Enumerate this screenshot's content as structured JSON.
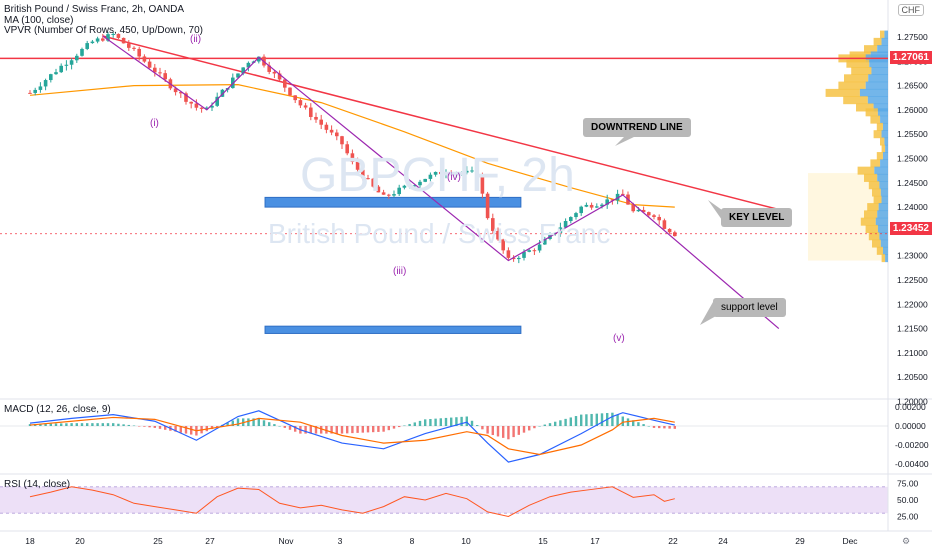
{
  "header": {
    "title": "British Pound / Swiss Franc, 2h, OANDA",
    "ma_label": "MA (100, close)",
    "vpvr_label": "VPVR (Number Of Rows, 450, Up/Down, 70)",
    "currency": "CHF"
  },
  "watermark": {
    "symbol": "GBPCHF, 2h",
    "name": "British Pound / Swiss Franc"
  },
  "annotations": {
    "downtrend": "DOWNTREND LINE",
    "key_level": "KEY LEVEL",
    "support": "support level",
    "waves": [
      "(i)",
      "(ii)",
      "(iii)",
      "(iv)",
      "(v)"
    ]
  },
  "price_tags": {
    "resistance": "1.27061",
    "current": "1.23452"
  },
  "macd": {
    "title": "MACD (12, 26, close, 9)"
  },
  "rsi": {
    "title": "RSI (14, close)"
  },
  "colors": {
    "up_candle": "#26a69a",
    "down_candle": "#ef5350",
    "ma": "#ff9800",
    "trend_line": "#f23645",
    "wave_line": "#9c27b0",
    "zone": "#4a90e2",
    "macd_line": "#2962ff",
    "signal_line": "#ff6d00",
    "rsi_line": "#ff5722",
    "rsi_band": "#ede0f7"
  },
  "chart_data": [
    {
      "type": "candlestick",
      "title": "British Pound / Swiss Franc, 2h, OANDA",
      "y_axis": {
        "ticks": [
          "1.27500",
          "1.27000",
          "1.26500",
          "1.26000",
          "1.25500",
          "1.25000",
          "1.24500",
          "1.24000",
          "1.23500",
          "1.23000",
          "1.22500",
          "1.22000",
          "1.21500",
          "1.21000",
          "1.20500",
          "1.20000"
        ],
        "ylim": [
          1.1975,
          1.2765
        ]
      },
      "x_axis": {
        "ticks": [
          "18",
          "20",
          "25",
          "27",
          "Nov",
          "3",
          "8",
          "10",
          "15",
          "17",
          "22",
          "24",
          "29",
          "Dec"
        ]
      },
      "price_path": [
        [
          0,
          1.2635
        ],
        [
          3,
          1.269
        ],
        [
          6,
          1.274
        ],
        [
          8,
          1.2755
        ],
        [
          10,
          1.272
        ],
        [
          12,
          1.268
        ],
        [
          14,
          1.264
        ],
        [
          16,
          1.2605
        ],
        [
          17,
          1.26
        ],
        [
          19,
          1.265
        ],
        [
          21,
          1.27
        ],
        [
          22,
          1.2708
        ],
        [
          24,
          1.266
        ],
        [
          26,
          1.261
        ],
        [
          28,
          1.257
        ],
        [
          30,
          1.253
        ],
        [
          31,
          1.249
        ],
        [
          33,
          1.244
        ],
        [
          34,
          1.242
        ],
        [
          36,
          1.244
        ],
        [
          38,
          1.246
        ],
        [
          40,
          1.2475
        ],
        [
          42,
          1.247
        ],
        [
          43,
          1.247
        ],
        [
          44,
          1.238
        ],
        [
          45,
          1.233
        ],
        [
          46,
          1.229
        ],
        [
          47,
          1.23
        ],
        [
          49,
          1.232
        ],
        [
          51,
          1.236
        ],
        [
          53,
          1.24
        ],
        [
          55,
          1.241
        ],
        [
          57,
          1.2425
        ],
        [
          58,
          1.239
        ],
        [
          60,
          1.2385
        ],
        [
          61,
          1.236
        ],
        [
          62,
          1.2345
        ]
      ],
      "last_price": 1.23452,
      "moving_average": {
        "name": "MA (100, close)",
        "path": [
          [
            0,
            1.263
          ],
          [
            10,
            1.265
          ],
          [
            20,
            1.2652
          ],
          [
            28,
            1.2615
          ],
          [
            36,
            1.2555
          ],
          [
            44,
            1.249
          ],
          [
            52,
            1.244
          ],
          [
            58,
            1.2405
          ],
          [
            62,
            1.24
          ]
        ]
      },
      "horizontal_lines": [
        {
          "label": "1.27061",
          "y": 1.27061
        }
      ],
      "zones": [
        {
          "label": "KEY LEVEL",
          "y_from": 1.24,
          "y_to": 1.242,
          "x_from_day": 22.6,
          "x_to_day": 47.2
        },
        {
          "label": "support level",
          "y_from": 1.214,
          "y_to": 1.2155,
          "x_from_day": 22.6,
          "x_to_day": 47.2
        }
      ],
      "trend_lines": [
        {
          "label": "DOWNTREND LINE",
          "from": [
            7,
            1.2752
          ],
          "to": [
            72,
            1.2395
          ]
        }
      ],
      "wave_points": [
        {
          "label": "(i)",
          "day": 17,
          "price": 1.26
        },
        {
          "label": "(ii)",
          "day": 22,
          "price": 1.2708
        },
        {
          "label": "(iii)",
          "day": 46,
          "price": 1.229
        },
        {
          "label": "(iv)",
          "day": 57,
          "price": 1.2425
        },
        {
          "label": "(v)",
          "day": 72,
          "price": 1.215
        }
      ],
      "volume_profile": {
        "label": "VPVR (Number Of Rows, 450, Up/Down, 70)",
        "value_area": [
          1.229,
          1.247
        ],
        "nodes": [
          [
            1.2755,
            0.1
          ],
          [
            1.274,
            0.18
          ],
          [
            1.2725,
            0.3
          ],
          [
            1.2712,
            0.48
          ],
          [
            1.2706,
            0.62
          ],
          [
            1.2695,
            0.52
          ],
          [
            1.268,
            0.46
          ],
          [
            1.2665,
            0.55
          ],
          [
            1.265,
            0.62
          ],
          [
            1.2635,
            0.78
          ],
          [
            1.262,
            0.56
          ],
          [
            1.2605,
            0.4
          ],
          [
            1.2595,
            0.28
          ],
          [
            1.258,
            0.22
          ],
          [
            1.2565,
            0.14
          ],
          [
            1.255,
            0.18
          ],
          [
            1.2535,
            0.1
          ],
          [
            1.252,
            0.08
          ],
          [
            1.2505,
            0.14
          ],
          [
            1.249,
            0.22
          ],
          [
            1.2475,
            0.38
          ],
          [
            1.246,
            0.3
          ],
          [
            1.2445,
            0.24
          ],
          [
            1.243,
            0.2
          ],
          [
            1.2415,
            0.18
          ],
          [
            1.24,
            0.26
          ],
          [
            1.2385,
            0.3
          ],
          [
            1.237,
            0.34
          ],
          [
            1.2355,
            0.28
          ],
          [
            1.234,
            0.24
          ],
          [
            1.2325,
            0.2
          ],
          [
            1.231,
            0.14
          ],
          [
            1.2295,
            0.08
          ]
        ]
      }
    },
    {
      "type": "macd",
      "title": "MACD (12, 26, close, 9)",
      "y_axis": {
        "ticks": [
          "0.00200",
          "0.00000",
          "-0.00200",
          "-0.00400"
        ],
        "ylim": [
          -0.0048,
          0.0028
        ]
      },
      "macd": [
        [
          0,
          0.0003
        ],
        [
          4,
          0.0008
        ],
        [
          8,
          0.0012
        ],
        [
          12,
          0.0005
        ],
        [
          16,
          -0.0015
        ],
        [
          20,
          0.001
        ],
        [
          22,
          0.0016
        ],
        [
          26,
          -0.0004
        ],
        [
          30,
          -0.0018
        ],
        [
          34,
          -0.0024
        ],
        [
          38,
          -0.0008
        ],
        [
          42,
          0.0004
        ],
        [
          44,
          -0.0018
        ],
        [
          46,
          -0.0038
        ],
        [
          49,
          -0.003
        ],
        [
          53,
          -0.0008
        ],
        [
          56,
          0.001
        ],
        [
          57,
          0.0014
        ],
        [
          60,
          0.0006
        ],
        [
          62,
          0.0001
        ]
      ],
      "signal": [
        [
          0,
          0.0001
        ],
        [
          4,
          0.0005
        ],
        [
          8,
          0.0009
        ],
        [
          12,
          0.0007
        ],
        [
          16,
          -0.0005
        ],
        [
          20,
          0.0002
        ],
        [
          22,
          0.0008
        ],
        [
          26,
          0.0004
        ],
        [
          30,
          -0.001
        ],
        [
          34,
          -0.0018
        ],
        [
          38,
          -0.0015
        ],
        [
          42,
          -0.0006
        ],
        [
          44,
          -0.001
        ],
        [
          46,
          -0.0024
        ],
        [
          49,
          -0.003
        ],
        [
          53,
          -0.002
        ],
        [
          56,
          -0.0004
        ],
        [
          57,
          0.0004
        ],
        [
          60,
          0.0008
        ],
        [
          62,
          0.0004
        ]
      ]
    },
    {
      "type": "rsi",
      "title": "RSI (14, close)",
      "y_axis": {
        "ticks": [
          "75.00",
          "50.00",
          "25.00"
        ],
        "ylim": [
          15,
          82
        ]
      },
      "band": [
        30,
        70
      ],
      "values": [
        [
          0,
          55
        ],
        [
          2,
          62
        ],
        [
          4,
          70
        ],
        [
          6,
          65
        ],
        [
          8,
          58
        ],
        [
          10,
          45
        ],
        [
          12,
          40
        ],
        [
          14,
          35
        ],
        [
          16,
          30
        ],
        [
          18,
          55
        ],
        [
          20,
          68
        ],
        [
          22,
          66
        ],
        [
          24,
          45
        ],
        [
          26,
          38
        ],
        [
          28,
          42
        ],
        [
          30,
          35
        ],
        [
          32,
          30
        ],
        [
          34,
          40
        ],
        [
          36,
          55
        ],
        [
          38,
          50
        ],
        [
          40,
          60
        ],
        [
          42,
          52
        ],
        [
          44,
          32
        ],
        [
          46,
          25
        ],
        [
          48,
          42
        ],
        [
          50,
          55
        ],
        [
          52,
          62
        ],
        [
          54,
          66
        ],
        [
          56,
          70
        ],
        [
          57,
          62
        ],
        [
          58,
          54
        ],
        [
          60,
          58
        ],
        [
          61,
          48
        ],
        [
          62,
          52
        ]
      ]
    }
  ]
}
